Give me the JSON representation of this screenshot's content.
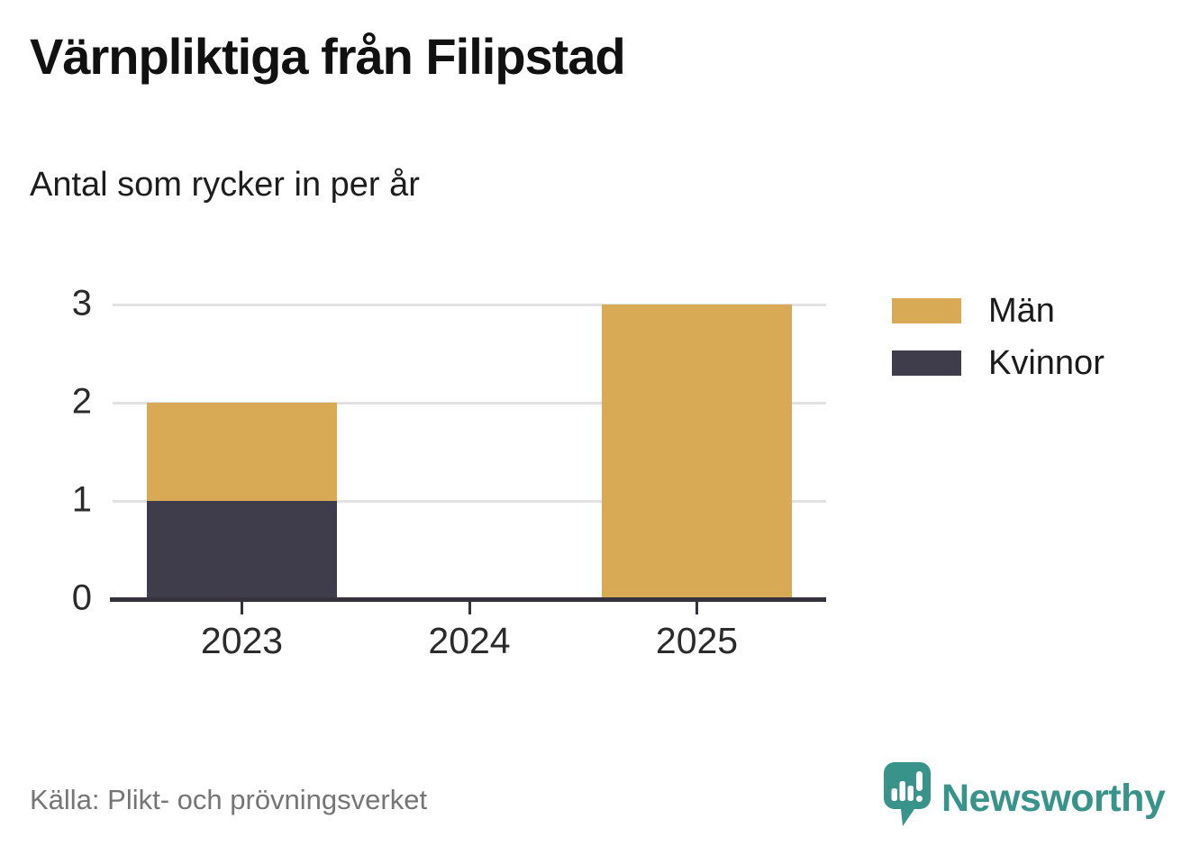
{
  "chart_data": {
    "type": "bar",
    "stacked": true,
    "title": "Värnpliktiga från Filipstad",
    "subtitle": "Antal som rycker in per år",
    "categories": [
      "2023",
      "2024",
      "2025"
    ],
    "series": [
      {
        "name": "Män",
        "color": "#d9aa55",
        "values": [
          1,
          0,
          3
        ]
      },
      {
        "name": "Kvinnor",
        "color": "#3f3c4b",
        "values": [
          1,
          0,
          0
        ]
      }
    ],
    "totals": [
      2,
      0,
      3
    ],
    "xlabel": "",
    "ylabel": "",
    "yticks": [
      0,
      1,
      2,
      3
    ],
    "ylim": [
      0,
      3
    ],
    "grid": true,
    "legend_position": "right"
  },
  "colors": {
    "axis": "#35323d",
    "gridline": "#e2e2e2",
    "tick_label": "#2b2b2b",
    "source_text": "#757575",
    "brand_teal": "#38938a"
  },
  "footer": {
    "source": "Källa: Plikt- och prövningsverket",
    "brand": "Newsworthy"
  }
}
